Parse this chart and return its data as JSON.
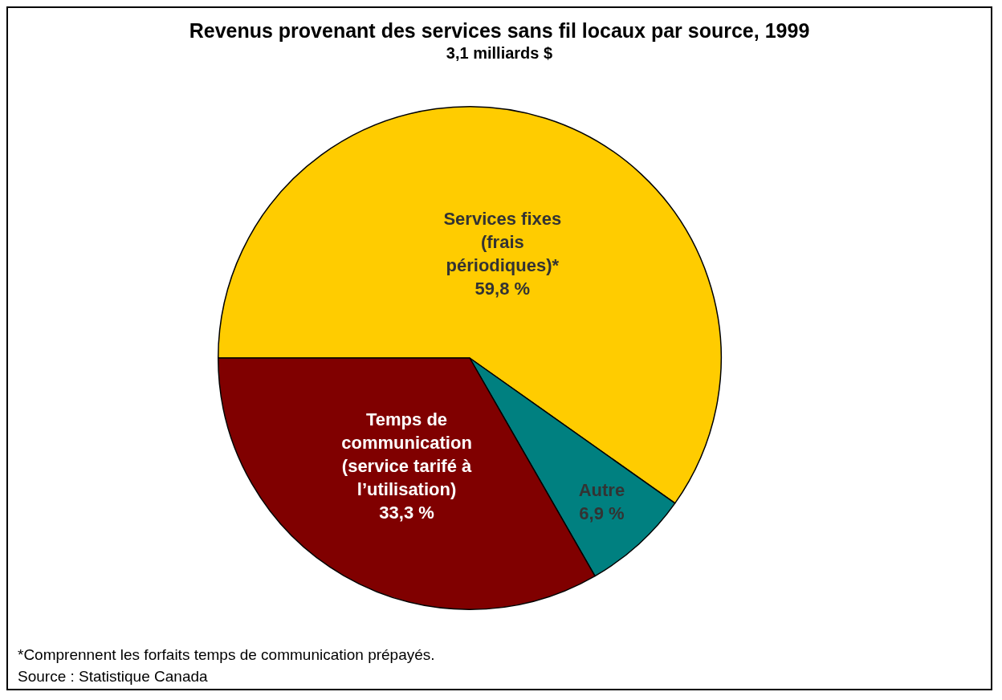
{
  "chart_data": {
    "type": "pie",
    "title": "Revenus provenant des services sans fil locaux par source, 1999",
    "subtitle": "3,1 milliards $",
    "categories": [
      "Services fixes (frais périodiques)*",
      "Autre",
      "Temps de communication (service tarifé à l’utilisation)"
    ],
    "values": [
      59.8,
      6.9,
      33.3
    ],
    "colors": [
      "#ffcc00",
      "#008080",
      "#800000"
    ],
    "value_labels": [
      "59,8 %",
      "6,9 %",
      "33,3 %"
    ],
    "annotations": [
      "*Comprennent les forfaits temps de communication prépayés.",
      "Source : Statistique Canada"
    ]
  }
}
